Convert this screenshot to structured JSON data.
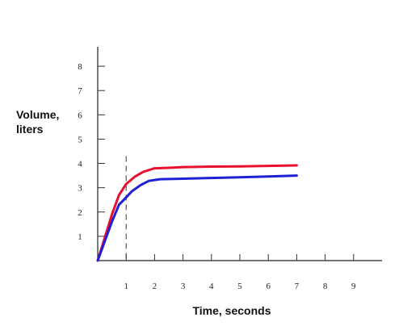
{
  "chart_data": {
    "type": "line",
    "title": "",
    "xlabel": "Time, seconds",
    "ylabel_lines": [
      "Volume,",
      "liters"
    ],
    "xlim": [
      0,
      10
    ],
    "ylim": [
      0,
      8.8
    ],
    "x_ticks": [
      1,
      2,
      3,
      4,
      5,
      6,
      7,
      8,
      9
    ],
    "y_ticks": [
      1,
      2,
      3,
      4,
      5,
      6,
      7,
      8
    ],
    "grid": false,
    "legend": null,
    "reference_line_x": 1,
    "series": [
      {
        "color": "#e8112d",
        "x": [
          0,
          0.25,
          0.5,
          0.75,
          1.0,
          1.3,
          1.6,
          2.0,
          2.5,
          3.0,
          4.0,
          5.0,
          6.0,
          7.0
        ],
        "y": [
          0,
          0.95,
          1.9,
          2.7,
          3.15,
          3.45,
          3.65,
          3.8,
          3.82,
          3.85,
          3.87,
          3.88,
          3.9,
          3.92
        ]
      },
      {
        "color": "#1f1fd6",
        "x": [
          0,
          0.25,
          0.5,
          0.75,
          1.0,
          1.2,
          1.5,
          1.8,
          2.2,
          3.0,
          4.0,
          5.0,
          6.0,
          7.0
        ],
        "y": [
          0,
          0.8,
          1.6,
          2.3,
          2.6,
          2.85,
          3.1,
          3.28,
          3.35,
          3.37,
          3.4,
          3.43,
          3.46,
          3.5
        ]
      }
    ]
  }
}
